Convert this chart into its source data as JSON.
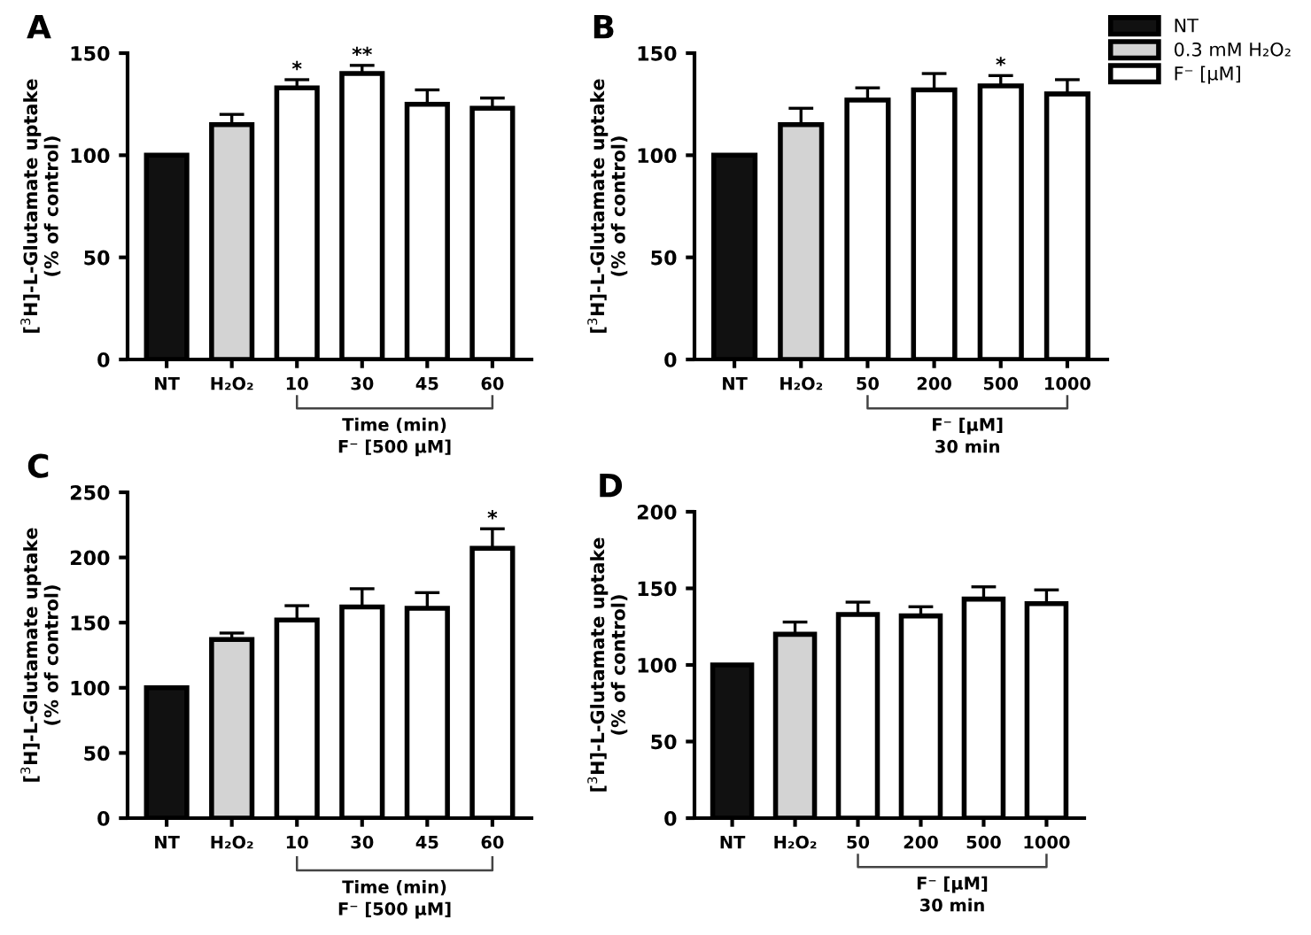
{
  "chart_data": [
    {
      "type": "bar",
      "title": "A",
      "ylabel": "[$^{3}$H]-L-Glutamate uptake\n(% of control)",
      "xlabel": "Time (min)\nF⁻ [500 µM]",
      "categories": [
        "NT",
        "H₂O₂",
        "10",
        "30",
        "45",
        "60"
      ],
      "ylim": [
        0,
        150
      ],
      "yticks": [
        0,
        50,
        100,
        150
      ],
      "grid": false,
      "legend": false,
      "series": [
        {
          "color": "#111111",
          "values": [
            100,
            null,
            null,
            null,
            null,
            null
          ],
          "errors": [
            null,
            null,
            null,
            null,
            null,
            null
          ]
        },
        {
          "color": "#d3d3d3",
          "values": [
            null,
            115,
            null,
            null,
            null,
            null
          ],
          "errors": [
            null,
            5,
            null,
            null,
            null,
            null
          ]
        },
        {
          "color": "#ffffff",
          "values": [
            null,
            null,
            133,
            140,
            125,
            123
          ],
          "errors": [
            null,
            null,
            4,
            4,
            7,
            5
          ]
        }
      ],
      "annotations": [
        {
          "text": "*",
          "x": "10",
          "y": 137
        },
        {
          "text": "**",
          "x": "30",
          "y": 144
        }
      ]
    },
    {
      "type": "bar",
      "title": "B",
      "ylabel": "[$^{3}$H]-L-Glutamate uptake\n(% of control)",
      "xlabel": "F⁻ [µM]\n30 min",
      "categories": [
        "NT",
        "H₂O₂",
        "50",
        "200",
        "500",
        "1000"
      ],
      "ylim": [
        0,
        150
      ],
      "yticks": [
        0,
        50,
        100,
        150
      ],
      "grid": false,
      "legend": "top right",
      "series": [
        {
          "name": "NT",
          "color": "#111111",
          "values": [
            100,
            null,
            null,
            null,
            null,
            null
          ],
          "errors": [
            null,
            null,
            null,
            null,
            null,
            null
          ]
        },
        {
          "name": "0.3 mM H₂O₂",
          "color": "#d3d3d3",
          "values": [
            null,
            115,
            null,
            null,
            null,
            null
          ],
          "errors": [
            null,
            8,
            null,
            null,
            null,
            null
          ]
        },
        {
          "name": "F⁻ [µM]",
          "color": "#ffffff",
          "values": [
            null,
            null,
            127,
            132,
            134,
            130
          ],
          "errors": [
            null,
            null,
            6,
            8,
            5,
            7
          ]
        }
      ],
      "annotations": [
        {
          "text": "*",
          "x": "500",
          "y": 139
        }
      ]
    },
    {
      "type": "bar",
      "title": "C",
      "ylabel": "[$^{3}$H]-L-Glutamate uptake\n(% of control)",
      "xlabel": "Time (min)\nF⁻ [500 µM]",
      "categories": [
        "NT",
        "H₂O₂",
        "10",
        "30",
        "45",
        "60"
      ],
      "ylim": [
        0,
        250
      ],
      "yticks": [
        0,
        50,
        100,
        150,
        200,
        250
      ],
      "grid": false,
      "legend": false,
      "series": [
        {
          "color": "#111111",
          "values": [
            100,
            null,
            null,
            null,
            null,
            null
          ],
          "errors": [
            null,
            null,
            null,
            null,
            null,
            null
          ]
        },
        {
          "color": "#d3d3d3",
          "values": [
            null,
            137,
            null,
            null,
            null,
            null
          ],
          "errors": [
            null,
            5,
            null,
            null,
            null,
            null
          ]
        },
        {
          "color": "#ffffff",
          "values": [
            null,
            null,
            152,
            162,
            161,
            207
          ],
          "errors": [
            null,
            null,
            11,
            14,
            12,
            15
          ]
        }
      ],
      "annotations": [
        {
          "text": "*",
          "x": "60",
          "y": 222
        }
      ]
    },
    {
      "type": "bar",
      "title": "D",
      "ylabel": "[$^{3}$H]-L-Glutamate uptake\n(% of control)",
      "xlabel": "F⁻ [µM]\n30 min",
      "categories": [
        "NT",
        "H₂O₂",
        "50",
        "200",
        "500",
        "1000"
      ],
      "ylim": [
        0,
        200
      ],
      "yticks": [
        0,
        50,
        100,
        150,
        200
      ],
      "grid": false,
      "legend": false,
      "series": [
        {
          "color": "#111111",
          "values": [
            100,
            null,
            null,
            null,
            null,
            null
          ],
          "errors": [
            null,
            null,
            null,
            null,
            null,
            null
          ]
        },
        {
          "color": "#d3d3d3",
          "values": [
            null,
            120,
            null,
            null,
            null,
            null
          ],
          "errors": [
            null,
            8,
            null,
            null,
            null,
            null
          ]
        },
        {
          "color": "#ffffff",
          "values": [
            null,
            null,
            133,
            132,
            143,
            140
          ],
          "errors": [
            null,
            null,
            8,
            6,
            8,
            9
          ]
        }
      ]
    }
  ]
}
